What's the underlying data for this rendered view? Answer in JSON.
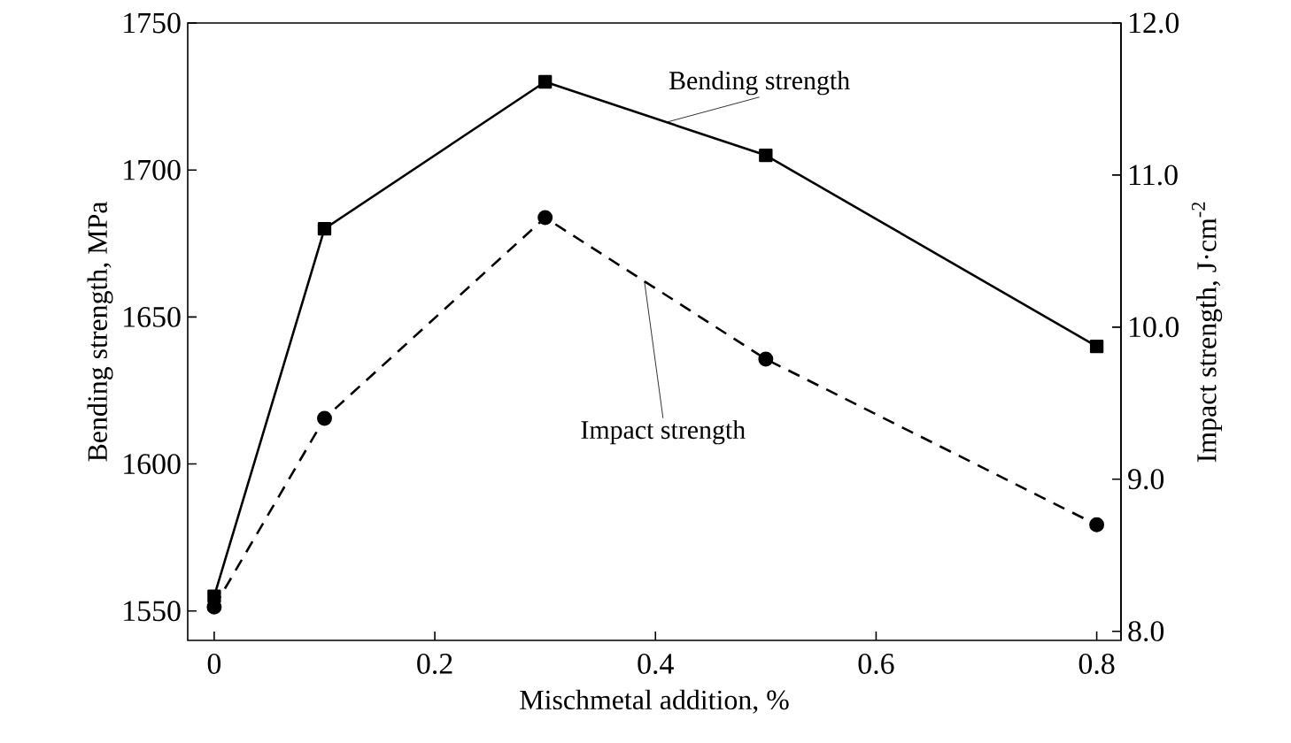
{
  "chart_data": {
    "type": "line",
    "xlabel": "Mischmetal addition, %",
    "ylabel": "Bending strength, MPa",
    "y2label": "Impact strength, J·cm$^{-2}$",
    "x": [
      0,
      0.1,
      0.3,
      0.5,
      0.8
    ],
    "series": [
      {
        "name": "Bending strength",
        "color": "#000000",
        "marker": "square",
        "line_style": "solid",
        "values": [
          1555,
          1680,
          1730,
          1705,
          1640
        ]
      },
      {
        "name": "Impact strength",
        "color": "#000000",
        "marker": "circle",
        "line_style": "dashed",
        "axis": "y2",
        "values": [
          8.16,
          9.4,
          10.72,
          9.79,
          8.7
        ]
      }
    ],
    "xlim": [
      -0.024,
      0.822
    ],
    "xticks": [
      0,
      0.2,
      0.4,
      0.6,
      0.8
    ],
    "ylim": [
      1540,
      1750
    ],
    "yticks": [
      1550,
      1600,
      1650,
      1700,
      1750
    ],
    "y2lim": [
      7.94,
      12.0
    ],
    "y2ticks": [
      {
        "value": 8,
        "label": "8.0"
      },
      {
        "value": 9,
        "label": "9.0"
      },
      {
        "value": 10,
        "label": "10.0"
      },
      {
        "value": 11,
        "label": "11.0"
      },
      {
        "value": 12,
        "label": "12.0"
      }
    ]
  }
}
